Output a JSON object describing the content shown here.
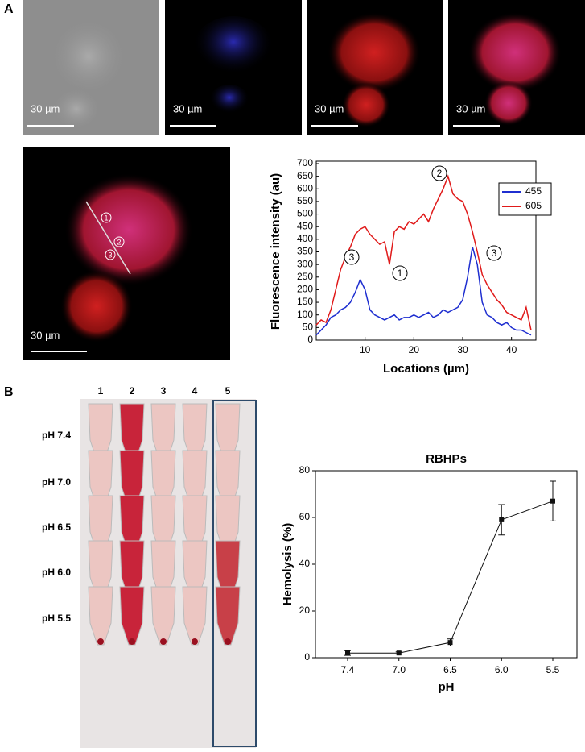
{
  "panel_labels": [
    "A",
    "B"
  ],
  "scale_bar_label": "30 µm",
  "line_scan_markers": [
    "1",
    "2",
    "3"
  ],
  "tubes": {
    "columns": [
      "1",
      "2",
      "3",
      "4",
      "5"
    ],
    "rows": [
      "pH 7.4",
      "pH 7.0",
      "pH 6.5",
      "pH 6.0",
      "pH 5.5"
    ]
  },
  "chart_data": [
    {
      "type": "line",
      "x_label": "Locations (µm)",
      "y_label": "Fluorescence intensity (au)",
      "x": [
        0,
        1,
        2,
        3,
        4,
        5,
        6,
        7,
        8,
        9,
        10,
        11,
        12,
        13,
        14,
        15,
        16,
        17,
        18,
        19,
        20,
        21,
        22,
        23,
        24,
        25,
        26,
        27,
        28,
        29,
        30,
        31,
        32,
        33,
        34,
        35,
        36,
        37,
        38,
        39,
        40,
        41,
        42,
        43,
        44
      ],
      "xlim": [
        0,
        45
      ],
      "xticks": [
        10,
        20,
        30,
        40
      ],
      "ylim": [
        0,
        700
      ],
      "yticks": [
        0,
        50,
        100,
        150,
        200,
        250,
        300,
        350,
        400,
        450,
        500,
        550,
        600,
        650,
        700
      ],
      "legend": "upper right",
      "series": [
        {
          "name": "455",
          "color": "#1f2fd0",
          "values": [
            20,
            40,
            60,
            90,
            100,
            120,
            130,
            150,
            190,
            240,
            200,
            120,
            100,
            90,
            80,
            90,
            100,
            80,
            90,
            90,
            100,
            90,
            100,
            110,
            90,
            100,
            120,
            110,
            120,
            130,
            160,
            250,
            370,
            300,
            150,
            100,
            90,
            70,
            60,
            70,
            50,
            40,
            40,
            30,
            20
          ]
        },
        {
          "name": "605",
          "color": "#e01a1a",
          "values": [
            60,
            80,
            70,
            120,
            200,
            280,
            330,
            370,
            420,
            440,
            450,
            420,
            400,
            380,
            390,
            300,
            430,
            450,
            440,
            470,
            460,
            480,
            500,
            470,
            520,
            560,
            600,
            650,
            580,
            560,
            550,
            500,
            430,
            350,
            260,
            220,
            190,
            160,
            140,
            110,
            100,
            90,
            80,
            130,
            40
          ]
        }
      ],
      "annotations": [
        "3",
        "1",
        "2",
        "3"
      ]
    },
    {
      "type": "errorline",
      "title": "RBHPs",
      "x_label": "pH",
      "y_label": "Hemolysis (%)",
      "categories": [
        "7.4",
        "7.0",
        "6.5",
        "6.0",
        "5.5"
      ],
      "values": [
        2,
        2,
        6.5,
        59,
        67
      ],
      "errors": [
        1,
        0.5,
        1.5,
        6.5,
        8.5
      ],
      "color": "#111111",
      "ylim": [
        0,
        80
      ],
      "yticks": [
        0,
        20,
        40,
        60,
        80
      ]
    }
  ]
}
